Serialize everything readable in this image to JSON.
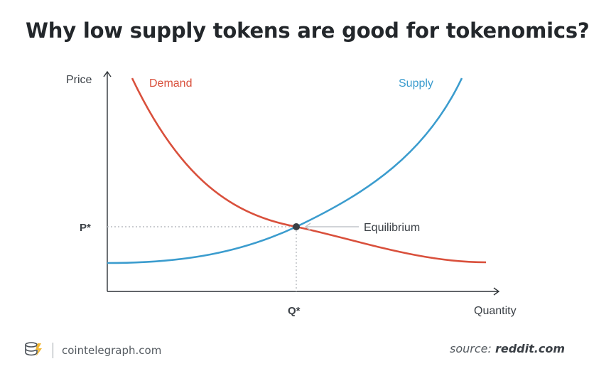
{
  "title": "Why low supply tokens are good for tokenomics?",
  "axes": {
    "y_label": "Price",
    "x_label": "Quantity"
  },
  "curves": {
    "demand_label": "Demand",
    "supply_label": "Supply",
    "demand_color": "#d9503c",
    "supply_color": "#3b9cce"
  },
  "equilibrium": {
    "label": "Equilibrium",
    "price_label": "P*",
    "quantity_label": "Q*"
  },
  "footer": {
    "logo_icon": "cointelegraph-coin-icon",
    "brand": "cointelegraph.com",
    "source_prefix": "source:",
    "source_name": "reddit.com"
  }
}
